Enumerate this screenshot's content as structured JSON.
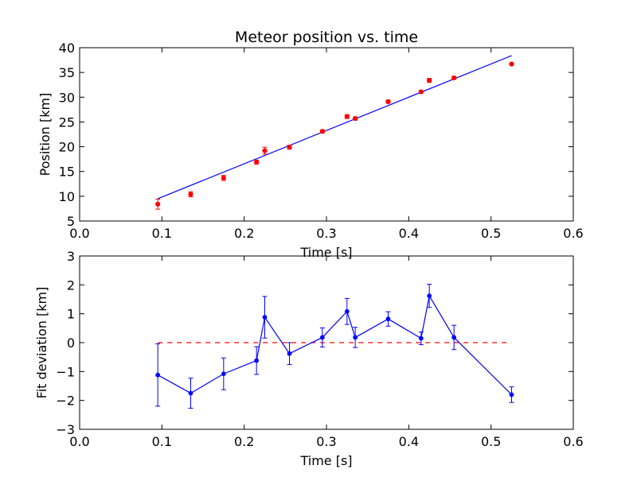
{
  "chart_data": [
    {
      "type": "scatter",
      "title": "Meteor position vs. time",
      "xlabel": "Time [s]",
      "ylabel": "Position [km]",
      "xlim": [
        0.0,
        0.6
      ],
      "ylim": [
        5,
        40
      ],
      "xticks": [
        "0.0",
        "0.1",
        "0.2",
        "0.3",
        "0.4",
        "0.5",
        "0.6"
      ],
      "yticks": [
        "5",
        "10",
        "15",
        "20",
        "25",
        "30",
        "35",
        "40"
      ],
      "grid": false,
      "colors": {
        "points": "#ff0000",
        "fit": "#0000ff"
      },
      "points": [
        {
          "x": 0.095,
          "y": 8.4,
          "err": 1.0
        },
        {
          "x": 0.135,
          "y": 10.4,
          "err": 0.5
        },
        {
          "x": 0.175,
          "y": 13.7,
          "err": 0.5
        },
        {
          "x": 0.215,
          "y": 16.9,
          "err": 0.4
        },
        {
          "x": 0.225,
          "y": 19.2,
          "err": 0.7
        },
        {
          "x": 0.255,
          "y": 19.9,
          "err": 0.4
        },
        {
          "x": 0.295,
          "y": 23.1,
          "err": 0.3
        },
        {
          "x": 0.325,
          "y": 26.1,
          "err": 0.4
        },
        {
          "x": 0.335,
          "y": 25.7,
          "err": 0.3
        },
        {
          "x": 0.375,
          "y": 29.1,
          "err": 0.3
        },
        {
          "x": 0.415,
          "y": 31.1,
          "err": 0.2
        },
        {
          "x": 0.425,
          "y": 33.4,
          "err": 0.4
        },
        {
          "x": 0.455,
          "y": 33.9,
          "err": 0.3
        },
        {
          "x": 0.525,
          "y": 36.7,
          "err": 0.2
        }
      ],
      "fit_line": [
        {
          "x": 0.095,
          "y": 9.5
        },
        {
          "x": 0.525,
          "y": 38.4
        }
      ]
    },
    {
      "type": "line",
      "title": "",
      "xlabel": "Time [s]",
      "ylabel": "Fit deviation [km]",
      "xlim": [
        0.0,
        0.6
      ],
      "ylim": [
        -3,
        3
      ],
      "xticks": [
        "0.0",
        "0.1",
        "0.2",
        "0.3",
        "0.4",
        "0.5",
        "0.6"
      ],
      "yticks": [
        "−3",
        "−2",
        "−1",
        "0",
        "1",
        "2",
        "3"
      ],
      "grid": false,
      "colors": {
        "series": "#0000ff",
        "zero_line": "#ff0000"
      },
      "zero_line": {
        "y": 0,
        "x_from": 0.095,
        "x_to": 0.525
      },
      "points": [
        {
          "x": 0.095,
          "y": -1.12,
          "err": 1.08
        },
        {
          "x": 0.135,
          "y": -1.75,
          "err": 0.52
        },
        {
          "x": 0.175,
          "y": -1.08,
          "err": 0.55
        },
        {
          "x": 0.215,
          "y": -0.62,
          "err": 0.48
        },
        {
          "x": 0.225,
          "y": 0.88,
          "err": 0.72
        },
        {
          "x": 0.255,
          "y": -0.38,
          "err": 0.38
        },
        {
          "x": 0.295,
          "y": 0.18,
          "err": 0.33
        },
        {
          "x": 0.325,
          "y": 1.08,
          "err": 0.45
        },
        {
          "x": 0.335,
          "y": 0.18,
          "err": 0.35
        },
        {
          "x": 0.375,
          "y": 0.82,
          "err": 0.25
        },
        {
          "x": 0.415,
          "y": 0.15,
          "err": 0.22
        },
        {
          "x": 0.425,
          "y": 1.62,
          "err": 0.4
        },
        {
          "x": 0.455,
          "y": 0.18,
          "err": 0.42
        },
        {
          "x": 0.525,
          "y": -1.8,
          "err": 0.27
        }
      ]
    }
  ]
}
